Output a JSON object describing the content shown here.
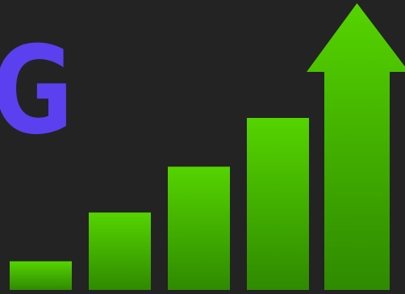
{
  "brand": {
    "letter": "G",
    "color": "#5b40f0"
  },
  "graphic": {
    "icon": "growth-bars-arrow-icon",
    "bar_levels": [
      0.1,
      0.27,
      0.43,
      0.6
    ],
    "arrow_level": 1.0,
    "colors": {
      "background": "#232323",
      "green_light": "#55d400",
      "green_dark": "#2f8a00"
    }
  }
}
